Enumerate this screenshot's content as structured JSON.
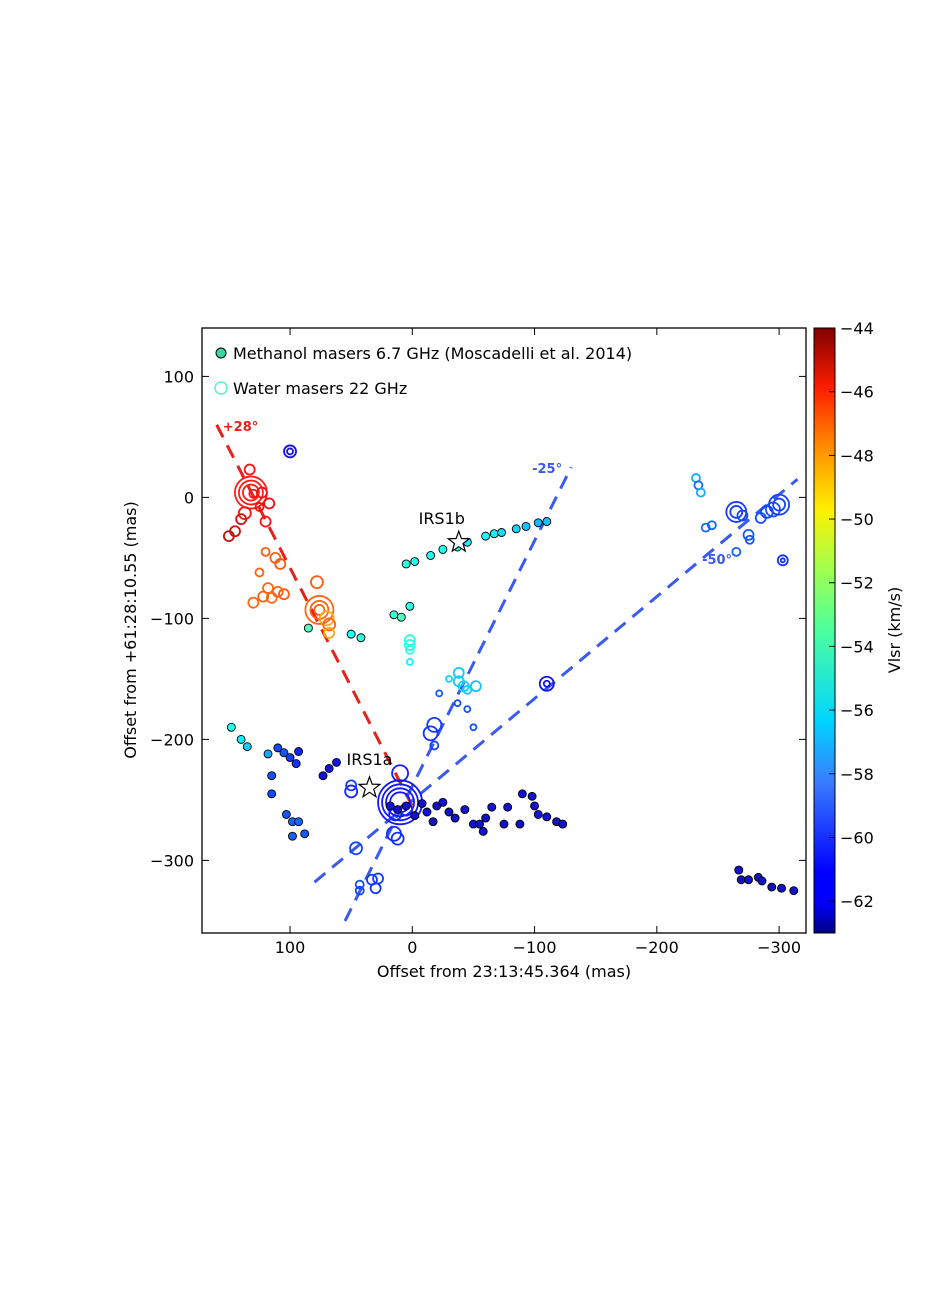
{
  "chart_data": {
    "type": "scatter",
    "xlabel": "Offset from 23:13:45.364 (mas)",
    "ylabel": "Offset from +61:28:10.55 (mas)",
    "xlim": [
      172,
      -322
    ],
    "ylim": [
      -360,
      140
    ],
    "xticks": [
      100,
      0,
      -100,
      -200,
      -300
    ],
    "xtick_labels": [
      "100",
      "0",
      "−100",
      "−200",
      "−300"
    ],
    "yticks": [
      100,
      0,
      -100,
      -200,
      -300
    ],
    "ytick_labels": [
      "100",
      "0",
      "−100",
      "−200",
      "−300"
    ],
    "colorbar": {
      "label": "Vlsr (km/s)",
      "min": -63,
      "max": -44,
      "ticks": [
        -44,
        -46,
        -48,
        -50,
        -52,
        -54,
        -56,
        -58,
        -60,
        -62
      ],
      "tick_labels": [
        "−44",
        "−46",
        "−48",
        "−50",
        "−52",
        "−54",
        "−56",
        "−58",
        "−60",
        "−62"
      ]
    },
    "legend": {
      "position": "top-left",
      "entries": [
        {
          "label": "Methanol masers 6.7 GHz (Moscadelli et al. 2014)",
          "marker": "filled",
          "color": "#3ad8a0"
        },
        {
          "label": "Water masers 22 GHz",
          "marker": "open",
          "color": "#5af0d0"
        }
      ]
    },
    "annotations": [
      {
        "text": "IRS1b",
        "x": -38,
        "y": -37,
        "label_dx": -17,
        "label_dy": 18
      },
      {
        "text": "IRS1a",
        "x": 35,
        "y": -240,
        "label_dx": 0,
        "label_dy": 23
      }
    ],
    "lines": [
      {
        "name": "red-outflow-line",
        "label": "+28°",
        "color": "#e8201a",
        "from": [
          160,
          60
        ],
        "to": [
          -5,
          -265
        ],
        "label_x": 155,
        "label_y": 55
      },
      {
        "name": "blue-outflow-line-25",
        "label": "-25°",
        "color": "#3a5af0",
        "from": [
          55,
          -350
        ],
        "to": [
          -130,
          25
        ],
        "label_x": -98,
        "label_y": 20
      },
      {
        "name": "blue-outflow-line-50",
        "label": "-50°",
        "color": "#3a5af0",
        "from": [
          80,
          -318
        ],
        "to": [
          -315,
          15
        ],
        "label_x": -237,
        "label_y": -55
      }
    ],
    "methanol": [
      {
        "x": 148,
        "y": -190,
        "v": -55.5
      },
      {
        "x": 140,
        "y": -200,
        "v": -56.3
      },
      {
        "x": 135,
        "y": -206,
        "v": -57.2
      },
      {
        "x": 118,
        "y": -212,
        "v": -58.2
      },
      {
        "x": 110,
        "y": -207,
        "v": -59.2
      },
      {
        "x": 105,
        "y": -211,
        "v": -58.8
      },
      {
        "x": 100,
        "y": -215,
        "v": -59.5
      },
      {
        "x": 95,
        "y": -220,
        "v": -59.8
      },
      {
        "x": 93,
        "y": -210,
        "v": -60.2
      },
      {
        "x": 115,
        "y": -230,
        "v": -58.9
      },
      {
        "x": 115,
        "y": -245,
        "v": -59.1
      },
      {
        "x": 103,
        "y": -262,
        "v": -58.8
      },
      {
        "x": 98,
        "y": -268,
        "v": -58.5
      },
      {
        "x": 93,
        "y": -268,
        "v": -58.3
      },
      {
        "x": 98,
        "y": -280,
        "v": -58.6
      },
      {
        "x": 88,
        "y": -278,
        "v": -58.8
      },
      {
        "x": 73,
        "y": -230,
        "v": -61.8
      },
      {
        "x": 68,
        "y": -224,
        "v": -61.5
      },
      {
        "x": 62,
        "y": -219,
        "v": -61.2
      },
      {
        "x": 85,
        "y": -108,
        "v": -54.2
      },
      {
        "x": 50,
        "y": -113,
        "v": -55.5
      },
      {
        "x": 42,
        "y": -116,
        "v": -55.0
      },
      {
        "x": 15,
        "y": -97,
        "v": -54.8
      },
      {
        "x": 9,
        "y": -99,
        "v": -54.3
      },
      {
        "x": 2,
        "y": -90,
        "v": -55.2
      },
      {
        "x": 5,
        "y": -55,
        "v": -55.3
      },
      {
        "x": -2,
        "y": -53,
        "v": -55.5
      },
      {
        "x": -15,
        "y": -48,
        "v": -55.6
      },
      {
        "x": -25,
        "y": -43,
        "v": -55.5
      },
      {
        "x": -37,
        "y": -41,
        "v": -55.8
      },
      {
        "x": -45,
        "y": -37,
        "v": -56.2
      },
      {
        "x": -60,
        "y": -32,
        "v": -55.8
      },
      {
        "x": -67,
        "y": -30,
        "v": -56.3
      },
      {
        "x": -73,
        "y": -29,
        "v": -56.8
      },
      {
        "x": -85,
        "y": -26,
        "v": -57.0
      },
      {
        "x": -93,
        "y": -24,
        "v": -57.5
      },
      {
        "x": -103,
        "y": -21,
        "v": -57.8
      },
      {
        "x": -110,
        "y": -20,
        "v": -57.5
      },
      {
        "x": 18,
        "y": -255,
        "v": -61.7
      },
      {
        "x": 12,
        "y": -258,
        "v": -62.2
      },
      {
        "x": 5,
        "y": -255,
        "v": -62.0
      },
      {
        "x": -2,
        "y": -263,
        "v": -61.8
      },
      {
        "x": -8,
        "y": -253,
        "v": -62.1
      },
      {
        "x": -12,
        "y": -260,
        "v": -61.7
      },
      {
        "x": -17,
        "y": -268,
        "v": -62.3
      },
      {
        "x": -20,
        "y": -255,
        "v": -62.0
      },
      {
        "x": -25,
        "y": -252,
        "v": -61.9
      },
      {
        "x": -30,
        "y": -260,
        "v": -62.1
      },
      {
        "x": -35,
        "y": -265,
        "v": -62.2
      },
      {
        "x": -43,
        "y": -258,
        "v": -62.0
      },
      {
        "x": -50,
        "y": -270,
        "v": -61.8
      },
      {
        "x": -55,
        "y": -270,
        "v": -62.1
      },
      {
        "x": -60,
        "y": -265,
        "v": -62.3
      },
      {
        "x": -58,
        "y": -276,
        "v": -62.0
      },
      {
        "x": -65,
        "y": -256,
        "v": -61.8
      },
      {
        "x": -78,
        "y": -256,
        "v": -62.0
      },
      {
        "x": -75,
        "y": -270,
        "v": -61.9
      },
      {
        "x": -88,
        "y": -270,
        "v": -62.2
      },
      {
        "x": -90,
        "y": -245,
        "v": -61.7
      },
      {
        "x": -98,
        "y": -247,
        "v": -61.8
      },
      {
        "x": -100,
        "y": -255,
        "v": -62.0
      },
      {
        "x": -103,
        "y": -262,
        "v": -61.6
      },
      {
        "x": -110,
        "y": -264,
        "v": -62.1
      },
      {
        "x": -118,
        "y": -268,
        "v": -62.3
      },
      {
        "x": -123,
        "y": -270,
        "v": -62.0
      },
      {
        "x": -267,
        "y": -308,
        "v": -62.0
      },
      {
        "x": -269,
        "y": -316,
        "v": -62.2
      },
      {
        "x": -275,
        "y": -316,
        "v": -62.1
      },
      {
        "x": -283,
        "y": -314,
        "v": -62.3
      },
      {
        "x": -286,
        "y": -317,
        "v": -62.0
      },
      {
        "x": -294,
        "y": -322,
        "v": -62.4
      },
      {
        "x": -302,
        "y": -323,
        "v": -62.2
      },
      {
        "x": -312,
        "y": -325,
        "v": -62.1
      }
    ],
    "water": [
      {
        "x": 132,
        "y": 4,
        "v": -46.6,
        "s": 16
      },
      {
        "x": 132,
        "y": 4,
        "v": -46.6,
        "s": 12
      },
      {
        "x": 132,
        "y": 4,
        "v": -46.6,
        "s": 8
      },
      {
        "x": 130,
        "y": 3,
        "v": -46.4,
        "s": 4
      },
      {
        "x": 133,
        "y": 23,
        "v": -46.3,
        "s": 5
      },
      {
        "x": 123,
        "y": 4,
        "v": -46.2,
        "s": 5
      },
      {
        "x": 117,
        "y": -5,
        "v": -45.8,
        "s": 5
      },
      {
        "x": 125,
        "y": -8,
        "v": -46.0,
        "s": 4
      },
      {
        "x": 137,
        "y": -13,
        "v": -46.2,
        "s": 6
      },
      {
        "x": 120,
        "y": -20,
        "v": -46.4,
        "s": 5
      },
      {
        "x": 140,
        "y": -18,
        "v": -45.2,
        "s": 5
      },
      {
        "x": 145,
        "y": -28,
        "v": -44.9,
        "s": 5
      },
      {
        "x": 150,
        "y": -32,
        "v": -44.7,
        "s": 5
      },
      {
        "x": 120,
        "y": -45,
        "v": -48.3,
        "s": 4
      },
      {
        "x": 112,
        "y": -50,
        "v": -48.4,
        "s": 5
      },
      {
        "x": 108,
        "y": -55,
        "v": -48.2,
        "s": 5
      },
      {
        "x": 125,
        "y": -62,
        "v": -48.5,
        "s": 4
      },
      {
        "x": 118,
        "y": -75,
        "v": -48.6,
        "s": 5
      },
      {
        "x": 110,
        "y": -78,
        "v": -48.5,
        "s": 5
      },
      {
        "x": 122,
        "y": -82,
        "v": -48.4,
        "s": 5
      },
      {
        "x": 115,
        "y": -83,
        "v": -48.6,
        "s": 5
      },
      {
        "x": 105,
        "y": -80,
        "v": -48.3,
        "s": 5
      },
      {
        "x": 130,
        "y": -87,
        "v": -48.7,
        "s": 5
      },
      {
        "x": 78,
        "y": -70,
        "v": -48.3,
        "s": 6
      },
      {
        "x": 76,
        "y": -93,
        "v": -48.5,
        "s": 14
      },
      {
        "x": 76,
        "y": -93,
        "v": -48.5,
        "s": 9
      },
      {
        "x": 76,
        "y": -93,
        "v": -48.5,
        "s": 5
      },
      {
        "x": 70,
        "y": -100,
        "v": -48.8,
        "s": 7
      },
      {
        "x": 68,
        "y": -105,
        "v": -48.6,
        "s": 6
      },
      {
        "x": 68,
        "y": -112,
        "v": -48.9,
        "s": 5
      },
      {
        "x": 100,
        "y": 38,
        "v": -61.5,
        "s": 6
      },
      {
        "x": 100,
        "y": 38,
        "v": -61.5,
        "s": 3
      },
      {
        "x": 2,
        "y": -118,
        "v": -55.0,
        "s": 5
      },
      {
        "x": 2,
        "y": -122,
        "v": -55.2,
        "s": 5
      },
      {
        "x": 2,
        "y": -126,
        "v": -55.1,
        "s": 4
      },
      {
        "x": 2,
        "y": -136,
        "v": -56.2,
        "s": 3
      },
      {
        "x": -38,
        "y": -145,
        "v": -57.3,
        "s": 5
      },
      {
        "x": -38,
        "y": -152,
        "v": -57.2,
        "s": 5
      },
      {
        "x": -42,
        "y": -156,
        "v": -57.1,
        "s": 5
      },
      {
        "x": -45,
        "y": -159,
        "v": -57.3,
        "s": 4
      },
      {
        "x": -52,
        "y": -156,
        "v": -57.4,
        "s": 5
      },
      {
        "x": -30,
        "y": -150,
        "v": -57.0,
        "s": 3
      },
      {
        "x": -22,
        "y": -162,
        "v": -58.6,
        "s": 3
      },
      {
        "x": -45,
        "y": -175,
        "v": -59.0,
        "s": 3
      },
      {
        "x": -37,
        "y": -170,
        "v": -59.2,
        "s": 3
      },
      {
        "x": -50,
        "y": -190,
        "v": -59.0,
        "s": 3
      },
      {
        "x": -18,
        "y": -188,
        "v": -59.5,
        "s": 7
      },
      {
        "x": -15,
        "y": -195,
        "v": -59.8,
        "s": 7
      },
      {
        "x": -18,
        "y": -205,
        "v": -59.4,
        "s": 4
      },
      {
        "x": 10,
        "y": -228,
        "v": -60.4,
        "s": 8
      },
      {
        "x": 10,
        "y": -252,
        "v": -60.5,
        "s": 22
      },
      {
        "x": 10,
        "y": -252,
        "v": -60.5,
        "s": 18
      },
      {
        "x": 10,
        "y": -252,
        "v": -60.5,
        "s": 14
      },
      {
        "x": 10,
        "y": -252,
        "v": -60.5,
        "s": 10
      },
      {
        "x": 14,
        "y": -262,
        "v": -60.3,
        "s": 6
      },
      {
        "x": 5,
        "y": -258,
        "v": -60.2,
        "s": 6
      },
      {
        "x": 15,
        "y": -278,
        "v": -60.0,
        "s": 7
      },
      {
        "x": 12,
        "y": -282,
        "v": -59.8,
        "s": 6
      },
      {
        "x": 50,
        "y": -243,
        "v": -60.1,
        "s": 6
      },
      {
        "x": 50,
        "y": -238,
        "v": -59.6,
        "s": 5
      },
      {
        "x": 46,
        "y": -290,
        "v": -59.2,
        "s": 6
      },
      {
        "x": 43,
        "y": -320,
        "v": -59.1,
        "s": 4
      },
      {
        "x": 43,
        "y": -325,
        "v": -59.2,
        "s": 4
      },
      {
        "x": 33,
        "y": -316,
        "v": -59.6,
        "s": 5
      },
      {
        "x": 28,
        "y": -315,
        "v": -59.4,
        "s": 5
      },
      {
        "x": 30,
        "y": -323,
        "v": -59.7,
        "s": 5
      },
      {
        "x": -110,
        "y": -154,
        "v": -61.2,
        "s": 7
      },
      {
        "x": -110,
        "y": -154,
        "v": -61.2,
        "s": 3
      },
      {
        "x": -232,
        "y": 16,
        "v": -58.2,
        "s": 4
      },
      {
        "x": -234,
        "y": 10,
        "v": -58.3,
        "s": 4
      },
      {
        "x": -236,
        "y": 4,
        "v": -58.1,
        "s": 4
      },
      {
        "x": -240,
        "y": -25,
        "v": -58.4,
        "s": 4
      },
      {
        "x": -245,
        "y": -23,
        "v": -58.5,
        "s": 4
      },
      {
        "x": -265,
        "y": -12,
        "v": -59.5,
        "s": 10
      },
      {
        "x": -265,
        "y": -12,
        "v": -59.5,
        "s": 6
      },
      {
        "x": -270,
        "y": -15,
        "v": -59.2,
        "s": 5
      },
      {
        "x": -275,
        "y": -31,
        "v": -58.7,
        "s": 5
      },
      {
        "x": -276,
        "y": -35,
        "v": -58.9,
        "s": 4
      },
      {
        "x": -265,
        "y": -45,
        "v": -58.6,
        "s": 4
      },
      {
        "x": -285,
        "y": -17,
        "v": -59.0,
        "s": 5
      },
      {
        "x": -290,
        "y": -12,
        "v": -59.3,
        "s": 6
      },
      {
        "x": -295,
        "y": -10,
        "v": -59.0,
        "s": 7
      },
      {
        "x": -300,
        "y": -6,
        "v": -59.4,
        "s": 10
      },
      {
        "x": -300,
        "y": -6,
        "v": -59.4,
        "s": 6
      },
      {
        "x": -303,
        "y": -52,
        "v": -59.8,
        "s": 5
      },
      {
        "x": -303,
        "y": -52,
        "v": -59.8,
        "s": 2
      }
    ]
  }
}
